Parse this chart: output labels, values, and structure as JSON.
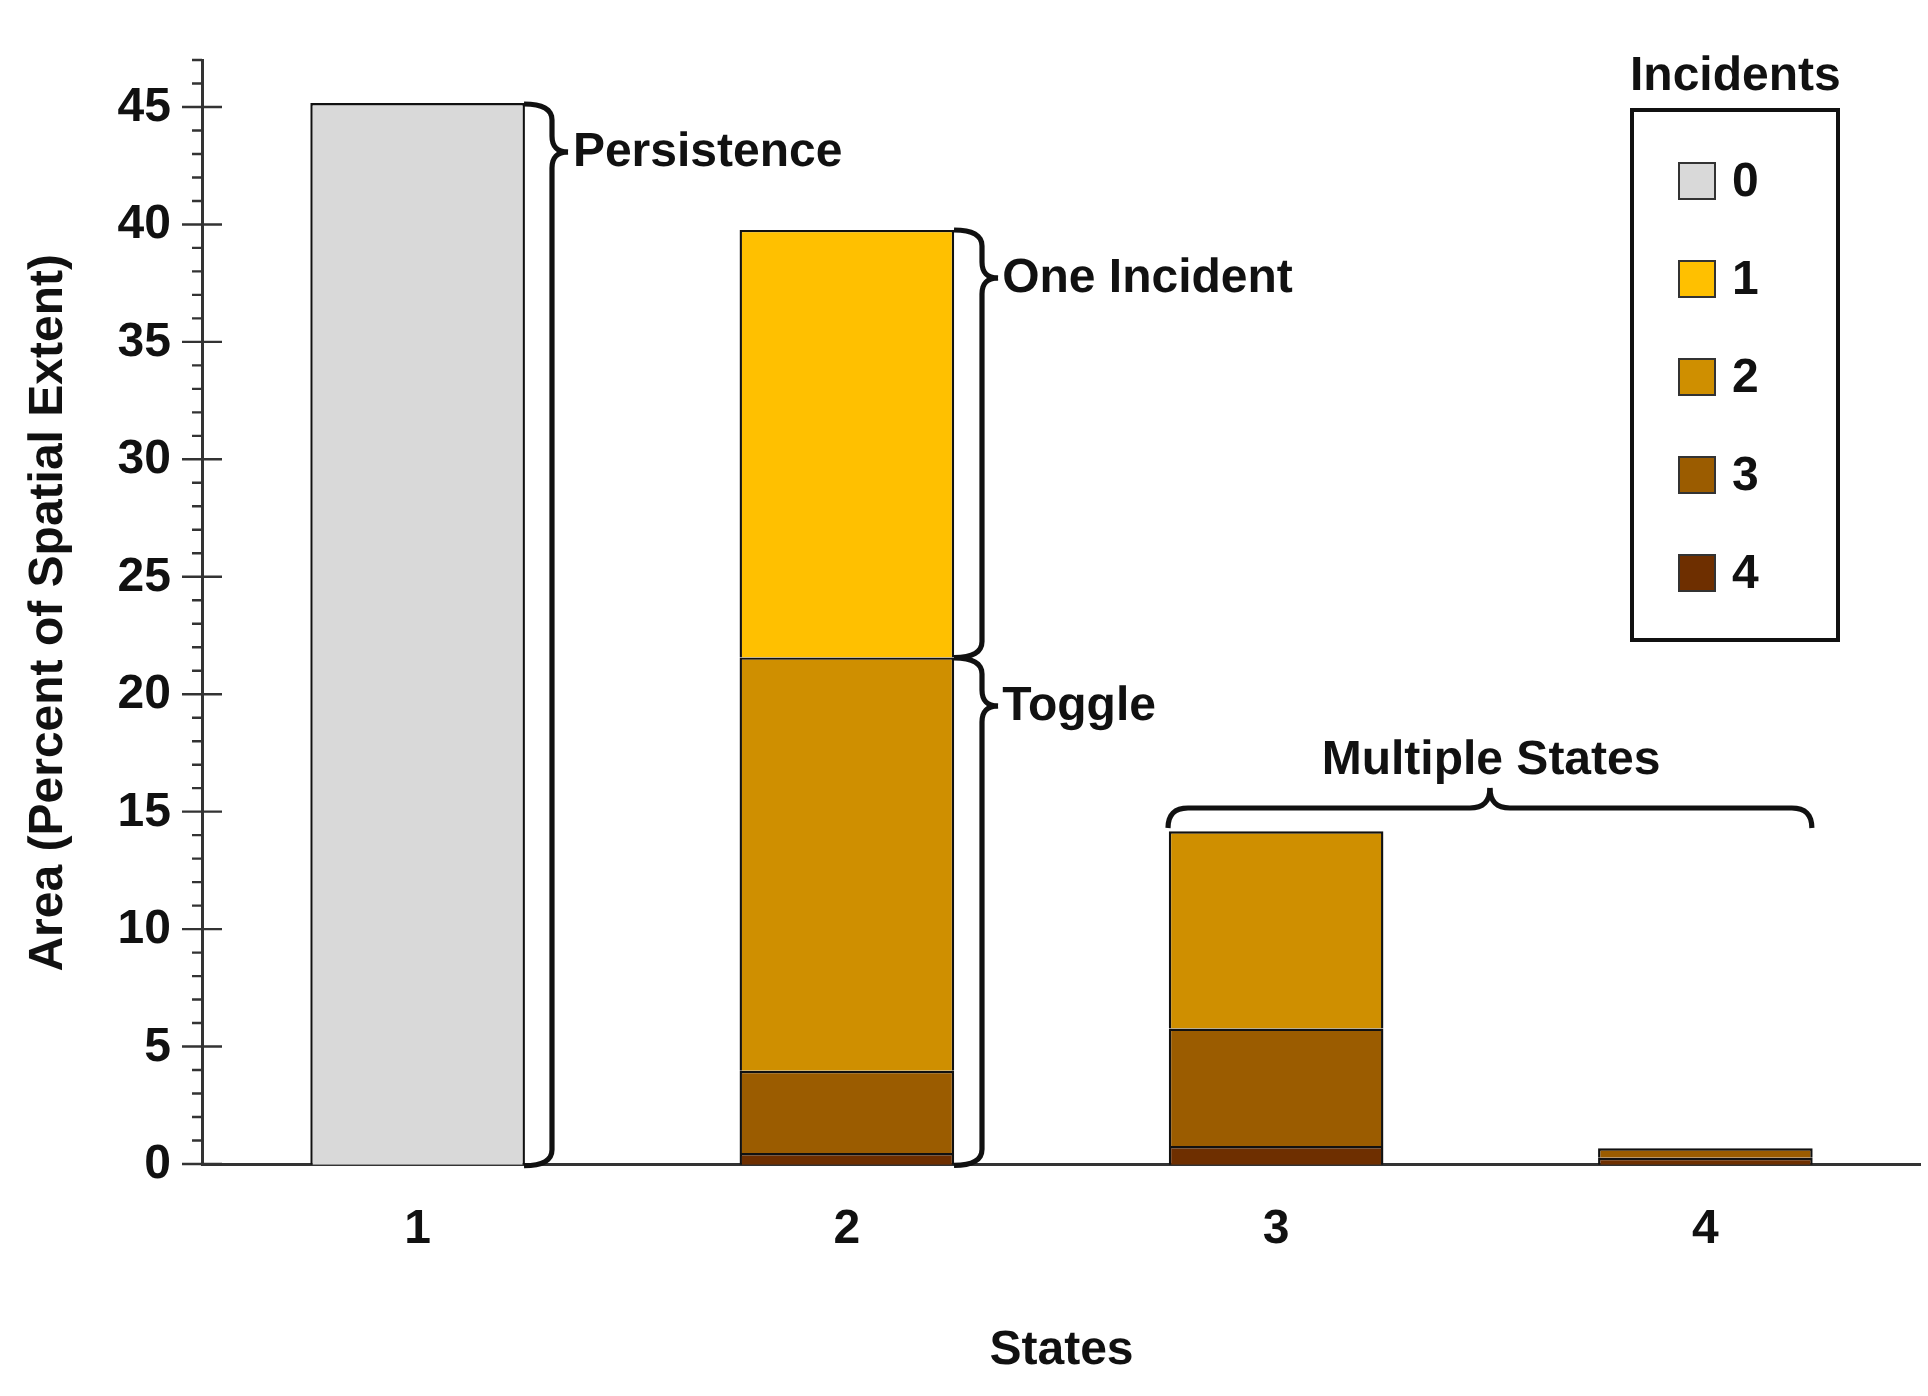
{
  "chart_data": {
    "type": "bar",
    "stacked": true,
    "xlabel": "States",
    "ylabel": "Area (Percent of Spatial Extent)",
    "legend_title": "Incidents",
    "legend": "top right",
    "grid": false,
    "categories": [
      "1",
      "2",
      "3",
      "4"
    ],
    "ylim": [
      0,
      47
    ],
    "yticks": [
      0,
      5,
      10,
      15,
      20,
      25,
      30,
      35,
      40,
      45
    ],
    "series": [
      {
        "name": "4",
        "color": "#6e2f00",
        "values": [
          null,
          0.5,
          0.8,
          0.3
        ]
      },
      {
        "name": "3",
        "color": "#9b5c00",
        "values": [
          null,
          3.5,
          5.0,
          0.4
        ]
      },
      {
        "name": "2",
        "color": "#cf8f00",
        "values": [
          null,
          17.6,
          8.4,
          null
        ]
      },
      {
        "name": "1",
        "color": "#ffc000",
        "values": [
          null,
          18.2,
          null,
          null
        ]
      },
      {
        "name": "0",
        "color": "#d9d9d9",
        "values": [
          45.2,
          null,
          null,
          null
        ]
      }
    ],
    "annotations": [
      "Persistence",
      "One Incident",
      "Toggle",
      "Multiple States"
    ]
  }
}
